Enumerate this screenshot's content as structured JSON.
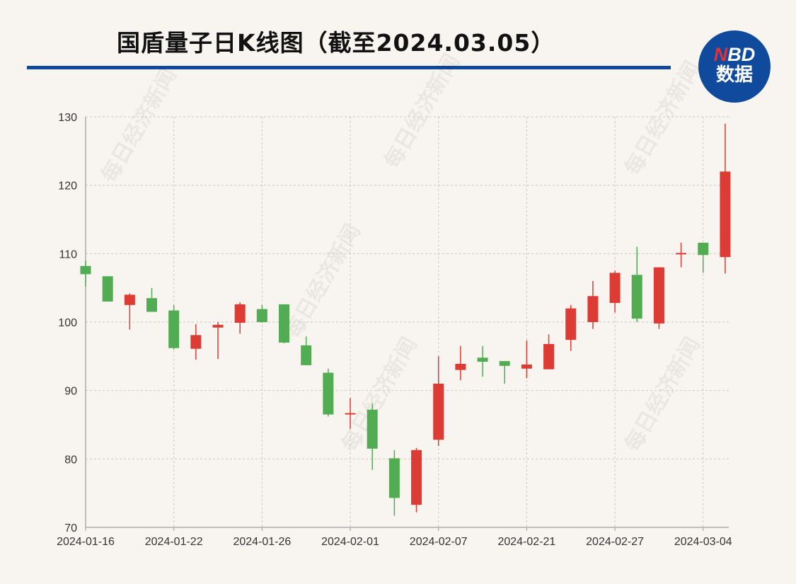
{
  "title": "国盾量子日K线图（截至2024.03.05）",
  "logo": {
    "brand": "NBD",
    "brand_first": "N",
    "brand_rest": "BD",
    "subtitle": "数据"
  },
  "watermark": "每日经济新闻",
  "colors": {
    "up": "#dd3c34",
    "down": "#52ad52",
    "rule": "#0f4a9c",
    "background": "#f8f5f0"
  },
  "chart_data": {
    "type": "candlestick",
    "title": "国盾量子日K线图（截至2024.03.05）",
    "ylim": [
      70,
      130
    ],
    "yticks": [
      70,
      80,
      90,
      100,
      110,
      120,
      130
    ],
    "xtick_labels": [
      "2024-01-16",
      "2024-01-22",
      "2024-01-26",
      "2024-02-01",
      "2024-02-07",
      "2024-02-21",
      "2024-02-27",
      "2024-03-04"
    ],
    "grid": true,
    "candles": [
      {
        "date": "2024-01-16",
        "open": 108.2,
        "high": 109.0,
        "low": 105.2,
        "close": 107.0
      },
      {
        "date": "2024-01-17",
        "open": 106.7,
        "high": 106.7,
        "low": 103.0,
        "close": 103.0
      },
      {
        "date": "2024-01-18",
        "open": 102.5,
        "high": 104.2,
        "low": 98.9,
        "close": 104.0
      },
      {
        "date": "2024-01-19",
        "open": 103.5,
        "high": 105.0,
        "low": 101.5,
        "close": 101.5
      },
      {
        "date": "2024-01-22",
        "open": 101.7,
        "high": 102.5,
        "low": 96.0,
        "close": 96.2
      },
      {
        "date": "2024-01-23",
        "open": 96.1,
        "high": 99.7,
        "low": 94.5,
        "close": 98.1
      },
      {
        "date": "2024-01-24",
        "open": 99.2,
        "high": 100.0,
        "low": 94.6,
        "close": 99.6
      },
      {
        "date": "2024-01-25",
        "open": 99.9,
        "high": 102.9,
        "low": 98.3,
        "close": 102.6
      },
      {
        "date": "2024-01-26",
        "open": 101.9,
        "high": 102.5,
        "low": 99.9,
        "close": 100.0
      },
      {
        "date": "2024-01-29",
        "open": 102.6,
        "high": 102.6,
        "low": 96.9,
        "close": 97.0
      },
      {
        "date": "2024-01-30",
        "open": 96.6,
        "high": 97.9,
        "low": 93.7,
        "close": 93.7
      },
      {
        "date": "2024-01-31",
        "open": 92.6,
        "high": 93.2,
        "low": 86.2,
        "close": 86.5
      },
      {
        "date": "2024-02-01",
        "open": 86.5,
        "high": 88.9,
        "low": 84.4,
        "close": 86.7
      },
      {
        "date": "2024-02-02",
        "open": 87.2,
        "high": 88.1,
        "low": 78.4,
        "close": 81.5
      },
      {
        "date": "2024-02-05",
        "open": 80.1,
        "high": 81.3,
        "low": 71.7,
        "close": 74.3
      },
      {
        "date": "2024-02-06",
        "open": 73.3,
        "high": 81.6,
        "low": 72.2,
        "close": 81.3
      },
      {
        "date": "2024-02-07",
        "open": 82.8,
        "high": 95.0,
        "low": 81.9,
        "close": 91.0
      },
      {
        "date": "2024-02-08",
        "open": 93.0,
        "high": 96.5,
        "low": 91.5,
        "close": 93.9
      },
      {
        "date": "2024-02-19",
        "open": 94.8,
        "high": 96.5,
        "low": 92.0,
        "close": 94.2
      },
      {
        "date": "2024-02-20",
        "open": 94.3,
        "high": 94.3,
        "low": 91.0,
        "close": 93.6
      },
      {
        "date": "2024-02-21",
        "open": 93.2,
        "high": 97.3,
        "low": 91.8,
        "close": 93.8
      },
      {
        "date": "2024-02-22",
        "open": 93.1,
        "high": 98.2,
        "low": 93.1,
        "close": 96.8
      },
      {
        "date": "2024-02-23",
        "open": 97.4,
        "high": 102.5,
        "low": 95.8,
        "close": 102.0
      },
      {
        "date": "2024-02-26",
        "open": 100.0,
        "high": 106.0,
        "low": 99.0,
        "close": 103.8
      },
      {
        "date": "2024-02-27",
        "open": 102.8,
        "high": 107.5,
        "low": 101.4,
        "close": 107.2
      },
      {
        "date": "2024-02-28",
        "open": 106.9,
        "high": 111.0,
        "low": 100.0,
        "close": 100.5
      },
      {
        "date": "2024-02-29",
        "open": 99.8,
        "high": 108.0,
        "low": 99.0,
        "close": 108.0
      },
      {
        "date": "2024-03-01",
        "open": 110.0,
        "high": 111.6,
        "low": 108.0,
        "close": 110.1
      },
      {
        "date": "2024-03-04",
        "open": 111.6,
        "high": 111.6,
        "low": 107.2,
        "close": 109.8
      },
      {
        "date": "2024-03-05",
        "open": 109.5,
        "high": 129.0,
        "low": 107.1,
        "close": 122.0
      }
    ]
  }
}
